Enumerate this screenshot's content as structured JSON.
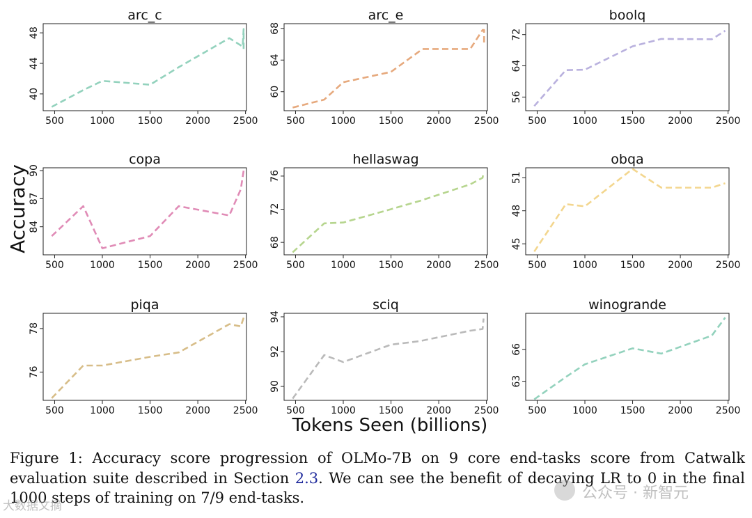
{
  "figure": {
    "y_label": "Accuracy",
    "x_label": "Tokens Seen (billions)"
  },
  "chart_data": [
    {
      "type": "line",
      "title": "arc_c",
      "color": "#93d2bd",
      "x": [
        470,
        800,
        1000,
        1500,
        1800,
        2330,
        2470,
        2480,
        2480
      ],
      "y": [
        38.3,
        40.5,
        41.7,
        41.2,
        43.5,
        47.3,
        46.2,
        48.5,
        45.8
      ],
      "xlim": [
        380,
        2510
      ],
      "ylim": [
        37.8,
        49.2
      ],
      "xticks": [
        500,
        1000,
        1500,
        2000,
        2500
      ],
      "yticks": [
        40,
        44,
        48
      ],
      "xlabel": "Tokens Seen (billions)",
      "ylabel": "Accuracy"
    },
    {
      "type": "line",
      "title": "arc_e",
      "color": "#e6a97d",
      "x": [
        470,
        800,
        1000,
        1500,
        1830,
        2330,
        2460,
        2475,
        2475
      ],
      "y": [
        58,
        59,
        61.2,
        62.5,
        65.4,
        65.4,
        67.8,
        67.8,
        66.2
      ],
      "xlim": [
        380,
        2510
      ],
      "ylim": [
        57.6,
        68.6
      ],
      "xticks": [
        500,
        1000,
        1500,
        2000,
        2500
      ],
      "yticks": [
        60,
        64,
        68
      ],
      "xlabel": "Tokens Seen (billions)",
      "ylabel": "Accuracy"
    },
    {
      "type": "line",
      "title": "boolq",
      "color": "#b9b1de",
      "x": [
        470,
        800,
        1000,
        1500,
        1800,
        2330,
        2470
      ],
      "y": [
        53.7,
        62.9,
        63,
        69,
        70.9,
        70.8,
        73
      ],
      "xlim": [
        380,
        2510
      ],
      "ylim": [
        52.5,
        74.8
      ],
      "xticks": [
        500,
        1000,
        1500,
        2000,
        2500
      ],
      "yticks": [
        56,
        64,
        72
      ],
      "xlabel": "Tokens Seen (billions)",
      "ylabel": "Accuracy"
    },
    {
      "type": "line",
      "title": "copa",
      "color": "#e08bb6",
      "x": [
        470,
        800,
        1000,
        1500,
        1800,
        2330,
        2450,
        2480
      ],
      "y": [
        83,
        86.2,
        81.7,
        83,
        86.2,
        85.2,
        88,
        90
      ],
      "xlim": [
        380,
        2510
      ],
      "ylim": [
        81,
        90.3
      ],
      "xticks": [
        500,
        1000,
        1500,
        2000,
        2500
      ],
      "yticks": [
        84,
        87,
        90
      ],
      "xlabel": "Tokens Seen (billions)",
      "ylabel": "Accuracy"
    },
    {
      "type": "line",
      "title": "hellaswag",
      "color": "#b6d58e",
      "x": [
        470,
        800,
        1000,
        1500,
        1800,
        2330,
        2460,
        2470
      ],
      "y": [
        66.8,
        70.3,
        70.4,
        72,
        73,
        75,
        75.8,
        76.5
      ],
      "xlim": [
        380,
        2510
      ],
      "ylim": [
        66.5,
        77
      ],
      "xticks": [
        500,
        1000,
        1500,
        2000,
        2500
      ],
      "yticks": [
        68,
        72,
        76
      ],
      "xlabel": "Tokens Seen (billions)",
      "ylabel": "Accuracy"
    },
    {
      "type": "line",
      "title": "obqa",
      "color": "#f3d68e",
      "x": [
        470,
        800,
        1000,
        1500,
        1800,
        2330,
        2470
      ],
      "y": [
        44.3,
        48.6,
        48.4,
        51.8,
        50.1,
        50.1,
        50.5
      ],
      "xlim": [
        380,
        2510
      ],
      "ylim": [
        44,
        51.9
      ],
      "xticks": [
        500,
        1000,
        1500,
        2000,
        2500
      ],
      "yticks": [
        45,
        48,
        51
      ],
      "xlabel": "Tokens Seen (billions)",
      "ylabel": "Accuracy"
    },
    {
      "type": "line",
      "title": "piqa",
      "color": "#d7bd88",
      "x": [
        470,
        800,
        1000,
        1500,
        1800,
        2330,
        2450,
        2480
      ],
      "y": [
        74.8,
        76.3,
        76.3,
        76.7,
        76.9,
        78.2,
        78.1,
        78.5
      ],
      "xlim": [
        380,
        2510
      ],
      "ylim": [
        74.7,
        78.7
      ],
      "xticks": [
        500,
        1000,
        1500,
        2000,
        2500
      ],
      "yticks": [
        76,
        78
      ],
      "xlabel": "Tokens Seen (billions)",
      "ylabel": "Accuracy"
    },
    {
      "type": "line",
      "title": "sciq",
      "color": "#bababa",
      "x": [
        470,
        800,
        1000,
        1500,
        1800,
        2330,
        2460,
        2470
      ],
      "y": [
        89.3,
        91.8,
        91.4,
        92.4,
        92.6,
        93.2,
        93.3,
        93.9
      ],
      "xlim": [
        380,
        2510
      ],
      "ylim": [
        89.2,
        94.2
      ],
      "xticks": [
        500,
        1000,
        1500,
        2000,
        2500
      ],
      "yticks": [
        90,
        92,
        94
      ],
      "xlabel": "Tokens Seen (billions)",
      "ylabel": "Accuracy"
    },
    {
      "type": "line",
      "title": "winogrande",
      "color": "#93d2bd",
      "x": [
        470,
        800,
        1000,
        1500,
        1800,
        2330,
        2470
      ],
      "y": [
        61.3,
        63.4,
        64.6,
        66.1,
        65.6,
        67.3,
        69
      ],
      "xlim": [
        380,
        2510
      ],
      "ylim": [
        61.2,
        69.4
      ],
      "xticks": [
        500,
        1000,
        1500,
        2000,
        2500
      ],
      "yticks": [
        63,
        66
      ],
      "xlabel": "Tokens Seen (billions)",
      "ylabel": "Accuracy"
    }
  ],
  "caption": {
    "prefix": "Figure 1: Accuracy score progression of OLMo-7B on 9 core end-tasks score from Catwalk evaluation suite described in Section ",
    "ref": "2.3",
    "suffix": ". We can see the benefit of decaying LR to 0 in the final 1000 steps of training on 7/9 end-tasks."
  },
  "watermark": {
    "right": "公众号 · 新智元",
    "left": "大数据文摘"
  }
}
